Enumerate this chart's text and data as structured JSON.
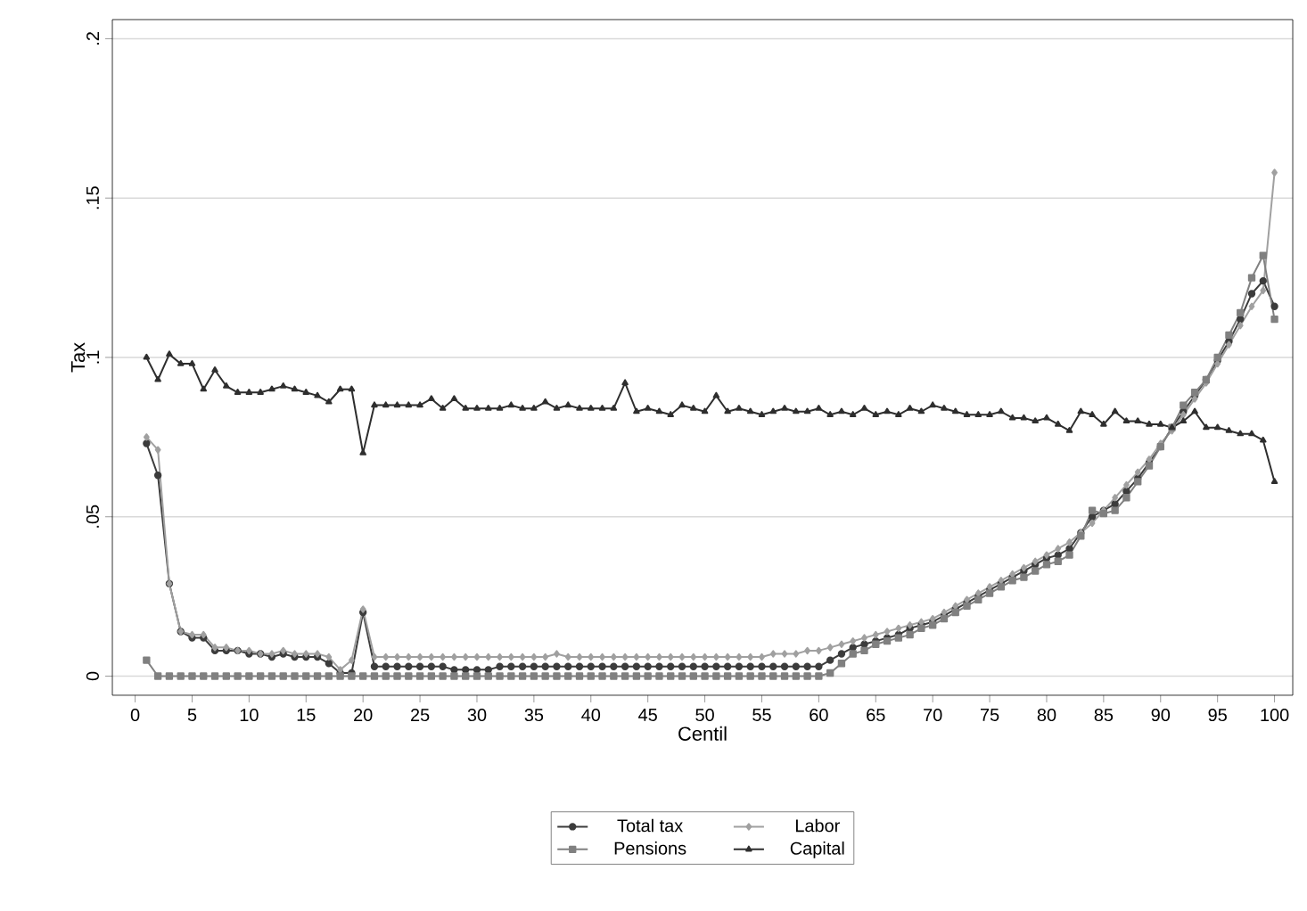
{
  "chart_data": {
    "type": "line",
    "xlabel": "Centil",
    "ylabel": "Tax",
    "x": [
      1,
      2,
      3,
      4,
      5,
      6,
      7,
      8,
      9,
      10,
      11,
      12,
      13,
      14,
      15,
      16,
      17,
      18,
      19,
      20,
      21,
      22,
      23,
      24,
      25,
      26,
      27,
      28,
      29,
      30,
      31,
      32,
      33,
      34,
      35,
      36,
      37,
      38,
      39,
      40,
      41,
      42,
      43,
      44,
      45,
      46,
      47,
      48,
      49,
      50,
      51,
      52,
      53,
      54,
      55,
      56,
      57,
      58,
      59,
      60,
      61,
      62,
      63,
      64,
      65,
      66,
      67,
      68,
      69,
      70,
      71,
      72,
      73,
      74,
      75,
      76,
      77,
      78,
      79,
      80,
      81,
      82,
      83,
      84,
      85,
      86,
      87,
      88,
      89,
      90,
      91,
      92,
      93,
      94,
      95,
      96,
      97,
      98,
      99,
      100
    ],
    "series": [
      {
        "name": "Total tax",
        "color": "#3c3c3c",
        "marker": "circle",
        "values": [
          0.073,
          0.063,
          0.029,
          0.014,
          0.012,
          0.012,
          0.008,
          0.008,
          0.008,
          0.007,
          0.007,
          0.006,
          0.007,
          0.006,
          0.006,
          0.006,
          0.004,
          0.001,
          0.001,
          0.02,
          0.003,
          0.003,
          0.003,
          0.003,
          0.003,
          0.003,
          0.003,
          0.002,
          0.002,
          0.002,
          0.002,
          0.003,
          0.003,
          0.003,
          0.003,
          0.003,
          0.003,
          0.003,
          0.003,
          0.003,
          0.003,
          0.003,
          0.003,
          0.003,
          0.003,
          0.003,
          0.003,
          0.003,
          0.003,
          0.003,
          0.003,
          0.003,
          0.003,
          0.003,
          0.003,
          0.003,
          0.003,
          0.003,
          0.003,
          0.003,
          0.005,
          0.007,
          0.009,
          0.01,
          0.011,
          0.012,
          0.013,
          0.015,
          0.016,
          0.017,
          0.019,
          0.021,
          0.023,
          0.025,
          0.027,
          0.029,
          0.031,
          0.033,
          0.035,
          0.037,
          0.038,
          0.04,
          0.045,
          0.05,
          0.052,
          0.054,
          0.058,
          0.062,
          0.067,
          0.072,
          0.078,
          0.083,
          0.088,
          0.093,
          0.099,
          0.105,
          0.112,
          0.12,
          0.124,
          0.116
        ]
      },
      {
        "name": "Labor",
        "color": "#a0a0a0",
        "marker": "diamond",
        "values": [
          0.075,
          0.071,
          0.029,
          0.014,
          0.013,
          0.013,
          0.009,
          0.009,
          0.008,
          0.008,
          0.007,
          0.007,
          0.008,
          0.007,
          0.007,
          0.007,
          0.006,
          0.002,
          0.005,
          0.021,
          0.006,
          0.006,
          0.006,
          0.006,
          0.006,
          0.006,
          0.006,
          0.006,
          0.006,
          0.006,
          0.006,
          0.006,
          0.006,
          0.006,
          0.006,
          0.006,
          0.007,
          0.006,
          0.006,
          0.006,
          0.006,
          0.006,
          0.006,
          0.006,
          0.006,
          0.006,
          0.006,
          0.006,
          0.006,
          0.006,
          0.006,
          0.006,
          0.006,
          0.006,
          0.006,
          0.007,
          0.007,
          0.007,
          0.008,
          0.008,
          0.009,
          0.01,
          0.011,
          0.012,
          0.013,
          0.014,
          0.015,
          0.016,
          0.017,
          0.018,
          0.02,
          0.022,
          0.024,
          0.026,
          0.028,
          0.03,
          0.032,
          0.034,
          0.036,
          0.038,
          0.04,
          0.042,
          0.045,
          0.048,
          0.052,
          0.056,
          0.06,
          0.064,
          0.068,
          0.073,
          0.077,
          0.082,
          0.087,
          0.092,
          0.098,
          0.104,
          0.11,
          0.116,
          0.121,
          0.158
        ]
      },
      {
        "name": "Pensions",
        "color": "#808080",
        "marker": "square",
        "values": [
          0.005,
          0,
          0,
          0,
          0,
          0,
          0,
          0,
          0,
          0,
          0,
          0,
          0,
          0,
          0,
          0,
          0,
          0,
          0,
          0,
          0,
          0,
          0,
          0,
          0,
          0,
          0,
          0,
          0,
          0,
          0,
          0,
          0,
          0,
          0,
          0,
          0,
          0,
          0,
          0,
          0,
          0,
          0,
          0,
          0,
          0,
          0,
          0,
          0,
          0,
          0,
          0,
          0,
          0,
          0,
          0,
          0,
          0,
          0,
          0,
          0.001,
          0.004,
          0.007,
          0.008,
          0.01,
          0.011,
          0.012,
          0.013,
          0.015,
          0.016,
          0.018,
          0.02,
          0.022,
          0.024,
          0.026,
          0.028,
          0.03,
          0.031,
          0.033,
          0.035,
          0.036,
          0.038,
          0.044,
          0.052,
          0.051,
          0.052,
          0.056,
          0.061,
          0.066,
          0.072,
          0.078,
          0.085,
          0.089,
          0.093,
          0.1,
          0.107,
          0.114,
          0.125,
          0.132,
          0.112
        ]
      },
      {
        "name": "Capital",
        "color": "#2e2e2e",
        "marker": "triangle",
        "values": [
          0.1,
          0.093,
          0.101,
          0.098,
          0.098,
          0.09,
          0.096,
          0.091,
          0.089,
          0.089,
          0.089,
          0.09,
          0.091,
          0.09,
          0.089,
          0.088,
          0.086,
          0.09,
          0.09,
          0.07,
          0.085,
          0.085,
          0.085,
          0.085,
          0.085,
          0.087,
          0.084,
          0.087,
          0.084,
          0.084,
          0.084,
          0.084,
          0.085,
          0.084,
          0.084,
          0.086,
          0.084,
          0.085,
          0.084,
          0.084,
          0.084,
          0.084,
          0.092,
          0.083,
          0.084,
          0.083,
          0.082,
          0.085,
          0.084,
          0.083,
          0.088,
          0.083,
          0.084,
          0.083,
          0.082,
          0.083,
          0.084,
          0.083,
          0.083,
          0.084,
          0.082,
          0.083,
          0.082,
          0.084,
          0.082,
          0.083,
          0.082,
          0.084,
          0.083,
          0.085,
          0.084,
          0.083,
          0.082,
          0.082,
          0.082,
          0.083,
          0.081,
          0.081,
          0.08,
          0.081,
          0.079,
          0.077,
          0.083,
          0.082,
          0.079,
          0.083,
          0.08,
          0.08,
          0.079,
          0.079,
          0.078,
          0.08,
          0.083,
          0.078,
          0.078,
          0.077,
          0.076,
          0.076,
          0.074,
          0.061
        ]
      }
    ],
    "xlim": [
      -2,
      101.6
    ],
    "ylim": [
      -0.006,
      0.206
    ],
    "xticks": [
      0,
      5,
      10,
      15,
      20,
      25,
      30,
      35,
      40,
      45,
      50,
      55,
      60,
      65,
      70,
      75,
      80,
      85,
      90,
      95,
      100
    ],
    "yticks": [
      0,
      {
        "value": 0.05,
        "label": ".05"
      },
      {
        "value": 0.1,
        "label": ".1"
      },
      {
        "value": 0.15,
        "label": ".15"
      },
      {
        "value": 0.2,
        "label": ".2"
      }
    ],
    "grid": "y",
    "legend": "bottom"
  }
}
